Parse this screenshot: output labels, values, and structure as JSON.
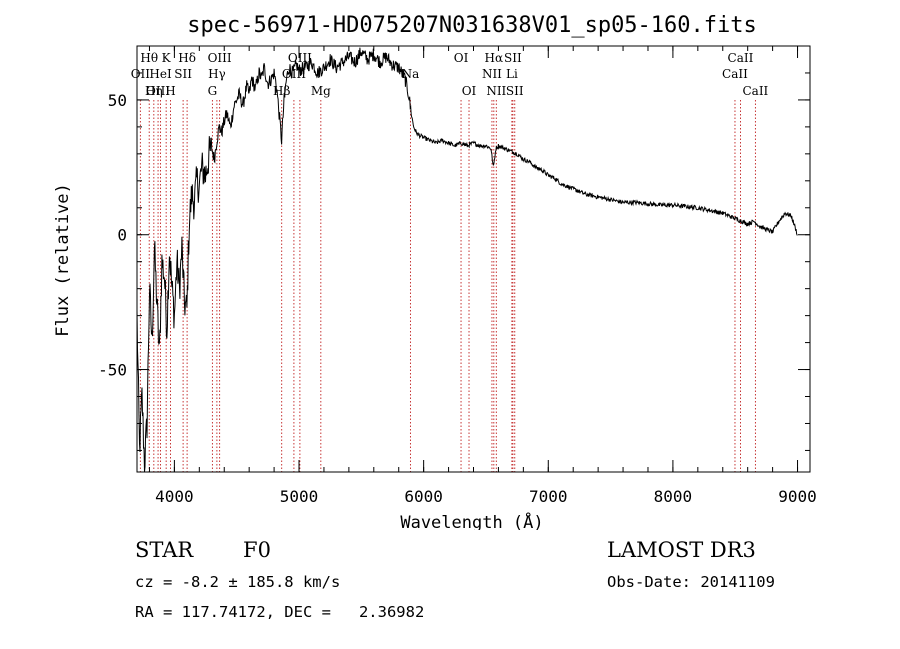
{
  "chart_data": {
    "type": "line",
    "title": "spec-56971-HD075207N031638V01_sp05-160.fits",
    "xlabel": "Wavelength (Å)",
    "ylabel": "Flux (relative)",
    "xlim": [
      3700,
      9100
    ],
    "ylim": [
      -88,
      70
    ],
    "xticks": [
      4000,
      5000,
      6000,
      7000,
      8000,
      9000
    ],
    "yticks": [
      -50,
      0,
      50
    ],
    "grid": false,
    "series": [
      {
        "points": [
          [
            3700,
            -30
          ],
          [
            3720,
            -80
          ],
          [
            3740,
            -60
          ],
          [
            3760,
            -85
          ],
          [
            3780,
            -70
          ],
          [
            3800,
            -20
          ],
          [
            3820,
            -40
          ],
          [
            3840,
            -5
          ],
          [
            3860,
            -25
          ],
          [
            3880,
            -45
          ],
          [
            3900,
            -10
          ],
          [
            3920,
            -15
          ],
          [
            3940,
            -35
          ],
          [
            3960,
            -5
          ],
          [
            3980,
            -20
          ],
          [
            4000,
            -30
          ],
          [
            4020,
            -10
          ],
          [
            4040,
            -20
          ],
          [
            4060,
            -5
          ],
          [
            4080,
            -25
          ],
          [
            4100,
            -28
          ],
          [
            4120,
            5
          ],
          [
            4140,
            15
          ],
          [
            4160,
            12
          ],
          [
            4180,
            20
          ],
          [
            4200,
            18
          ],
          [
            4220,
            25
          ],
          [
            4250,
            22
          ],
          [
            4280,
            30
          ],
          [
            4300,
            32
          ],
          [
            4320,
            28
          ],
          [
            4340,
            35
          ],
          [
            4360,
            40
          ],
          [
            4380,
            38
          ],
          [
            4400,
            42
          ],
          [
            4420,
            45
          ],
          [
            4450,
            40
          ],
          [
            4480,
            48
          ],
          [
            4500,
            50
          ],
          [
            4520,
            52
          ],
          [
            4550,
            48
          ],
          [
            4580,
            55
          ],
          [
            4600,
            52
          ],
          [
            4620,
            58
          ],
          [
            4650,
            54
          ],
          [
            4680,
            60
          ],
          [
            4700,
            58
          ],
          [
            4720,
            62
          ],
          [
            4750,
            56
          ],
          [
            4780,
            58
          ],
          [
            4800,
            60
          ],
          [
            4820,
            55
          ],
          [
            4840,
            45
          ],
          [
            4860,
            35
          ],
          [
            4880,
            50
          ],
          [
            4900,
            58
          ],
          [
            4920,
            62
          ],
          [
            4950,
            60
          ],
          [
            4980,
            63
          ],
          [
            5000,
            61
          ],
          [
            5050,
            62
          ],
          [
            5100,
            64
          ],
          [
            5150,
            60
          ],
          [
            5200,
            62
          ],
          [
            5250,
            65
          ],
          [
            5300,
            62
          ],
          [
            5350,
            64
          ],
          [
            5400,
            66
          ],
          [
            5450,
            64
          ],
          [
            5500,
            68
          ],
          [
            5550,
            65
          ],
          [
            5600,
            67
          ],
          [
            5650,
            64
          ],
          [
            5700,
            66
          ],
          [
            5750,
            63
          ],
          [
            5800,
            62
          ],
          [
            5850,
            58
          ],
          [
            5880,
            52
          ],
          [
            5900,
            45
          ],
          [
            5920,
            40
          ],
          [
            5940,
            38
          ],
          [
            5960,
            37
          ],
          [
            6000,
            36
          ],
          [
            6050,
            35
          ],
          [
            6100,
            34
          ],
          [
            6150,
            35
          ],
          [
            6200,
            34
          ],
          [
            6250,
            33
          ],
          [
            6300,
            34
          ],
          [
            6350,
            33
          ],
          [
            6400,
            34
          ],
          [
            6450,
            33
          ],
          [
            6500,
            33
          ],
          [
            6540,
            32
          ],
          [
            6560,
            25
          ],
          [
            6580,
            32
          ],
          [
            6600,
            33
          ],
          [
            6650,
            32
          ],
          [
            6700,
            31
          ],
          [
            6750,
            30
          ],
          [
            6800,
            28
          ],
          [
            6850,
            27
          ],
          [
            6900,
            25
          ],
          [
            6950,
            24
          ],
          [
            7000,
            22
          ],
          [
            7050,
            21
          ],
          [
            7100,
            19
          ],
          [
            7150,
            18
          ],
          [
            7200,
            17
          ],
          [
            7250,
            16
          ],
          [
            7300,
            15
          ],
          [
            7400,
            14
          ],
          [
            7500,
            13
          ],
          [
            7600,
            12
          ],
          [
            7700,
            12
          ],
          [
            7800,
            11.5
          ],
          [
            7900,
            11
          ],
          [
            8000,
            11
          ],
          [
            8100,
            10.5
          ],
          [
            8200,
            10
          ],
          [
            8300,
            9
          ],
          [
            8400,
            8
          ],
          [
            8500,
            6
          ],
          [
            8550,
            5
          ],
          [
            8600,
            4
          ],
          [
            8650,
            5
          ],
          [
            8700,
            3
          ],
          [
            8750,
            2
          ],
          [
            8800,
            1
          ],
          [
            8850,
            5
          ],
          [
            8900,
            8
          ],
          [
            8950,
            7
          ],
          [
            9000,
            0
          ]
        ]
      }
    ],
    "line_markers": [
      {
        "label": "Hθ",
        "wavelength": 3798,
        "row": 0
      },
      {
        "label": "OII",
        "wavelength": 3727,
        "row": 1
      },
      {
        "label": "OIII",
        "wavelength": 3869,
        "row": 2
      },
      {
        "label": "K",
        "wavelength": 3934,
        "row": 0
      },
      {
        "label": "HeI",
        "wavelength": 3889,
        "row": 1
      },
      {
        "label": "Hη",
        "wavelength": 3835,
        "row": 2
      },
      {
        "label": "SII",
        "wavelength": 4070,
        "row": 1
      },
      {
        "label": "H",
        "wavelength": 3969,
        "row": 2
      },
      {
        "label": "Hδ",
        "wavelength": 4102,
        "row": 0
      },
      {
        "label": "OIII",
        "wavelength": 4363,
        "row": 0
      },
      {
        "label": "Hγ",
        "wavelength": 4341,
        "row": 1
      },
      {
        "label": "G",
        "wavelength": 4305,
        "row": 2
      },
      {
        "label": "OIII",
        "wavelength": 5007,
        "row": 0
      },
      {
        "label": "OIII",
        "wavelength": 4959,
        "row": 1
      },
      {
        "label": "Hβ",
        "wavelength": 4861,
        "row": 2
      },
      {
        "label": "Mg",
        "wavelength": 5175,
        "row": 2
      },
      {
        "label": "Na",
        "wavelength": 5894,
        "row": 1
      },
      {
        "label": "OI",
        "wavelength": 6300,
        "row": 0
      },
      {
        "label": "OI",
        "wavelength": 6364,
        "row": 2
      },
      {
        "label": "Hα",
        "wavelength": 6563,
        "row": 0
      },
      {
        "label": "NII",
        "wavelength": 6548,
        "row": 1
      },
      {
        "label": "NII",
        "wavelength": 6583,
        "row": 2
      },
      {
        "label": "SII",
        "wavelength": 6716,
        "row": 0
      },
      {
        "label": "Li",
        "wavelength": 6708,
        "row": 1
      },
      {
        "label": "SII",
        "wavelength": 6731,
        "row": 2
      },
      {
        "label": "CaII",
        "wavelength": 8542,
        "row": 0
      },
      {
        "label": "CaII",
        "wavelength": 8498,
        "row": 1
      },
      {
        "label": "CaII",
        "wavelength": 8662,
        "row": 2
      }
    ]
  },
  "info": {
    "object_class": "STAR",
    "subclass": "F0",
    "survey": "LAMOST DR3",
    "redshift": "cz = -8.2 ± 185.8 km/s",
    "obs_date": "Obs-Date: 20141109",
    "coords": "RA = 117.74172, DEC =   2.36982"
  }
}
